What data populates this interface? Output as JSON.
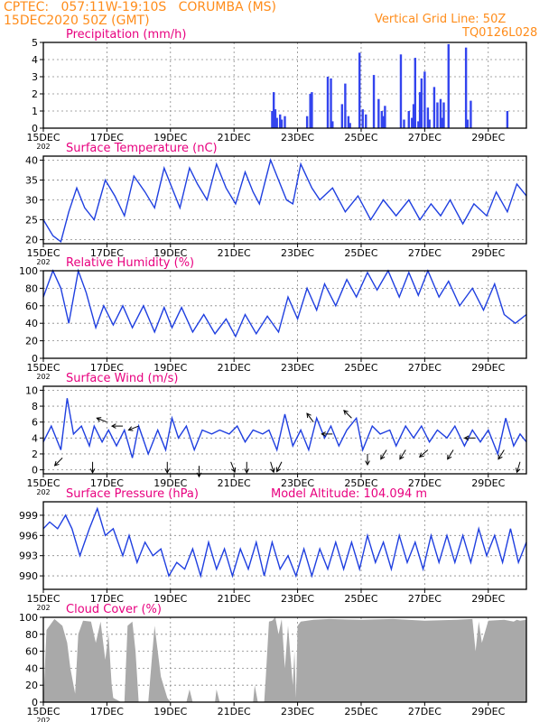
{
  "header": {
    "line1": "CPTEC:   057:11W-19:10S   CORUMBA (MS)",
    "line2": "15DEC2020 50Z (GMT)",
    "grid_note": "Vertical Grid Line: 50Z",
    "code": "TQ0126L028"
  },
  "colors": {
    "title": "#e8007f",
    "header": "#ff8c1a",
    "series": "#1f3fe0",
    "bars": "#3344ee",
    "cloud": "#a9a9a9",
    "arrow": "#000000"
  },
  "x_axis": {
    "tick_labels": [
      "15DEC",
      "17DEC",
      "19DEC",
      "21DEC",
      "23DEC",
      "25DEC",
      "27DEC",
      "29DEC"
    ],
    "year_stub": "202",
    "start_day": 15,
    "end_day": 30.2
  },
  "chart_data": [
    {
      "type": "bar",
      "title": "Precipitation (mm/h)",
      "ylim": [
        0,
        5
      ],
      "yticks": [
        "0",
        "1",
        "2",
        "3",
        "4",
        "5"
      ],
      "x_days": [
        22.2,
        22.25,
        22.3,
        22.35,
        22.45,
        22.5,
        22.6,
        23.3,
        23.4,
        23.45,
        23.95,
        24.05,
        24.1,
        24.4,
        24.5,
        24.6,
        24.65,
        24.95,
        25.05,
        25.15,
        25.4,
        25.55,
        25.65,
        25.7,
        25.75,
        26.25,
        26.35,
        26.5,
        26.6,
        26.65,
        26.7,
        26.8,
        26.85,
        26.9,
        27.0,
        27.1,
        27.15,
        27.3,
        27.4,
        27.5,
        27.55,
        27.6,
        27.75,
        28.3,
        28.35,
        28.45,
        29.6
      ],
      "values": [
        1.0,
        2.1,
        1.1,
        0.6,
        0.8,
        0.5,
        0.7,
        0.7,
        2.0,
        2.1,
        3.0,
        2.9,
        0.4,
        1.4,
        2.6,
        0.7,
        0.3,
        4.4,
        1.1,
        0.8,
        3.1,
        1.7,
        1.0,
        0.7,
        1.3,
        4.3,
        0.5,
        1.0,
        0.6,
        1.4,
        4.1,
        0.4,
        2.1,
        2.9,
        3.3,
        1.2,
        0.5,
        2.4,
        1.5,
        1.7,
        0.6,
        1.5,
        4.9,
        4.7,
        0.5,
        1.6,
        1.0
      ]
    },
    {
      "type": "line",
      "title": "Surface Temperature (nC)",
      "ylim": [
        19,
        41
      ],
      "yticks": [
        "20",
        "25",
        "30",
        "35",
        "40"
      ],
      "x": [
        15.0,
        15.3,
        15.55,
        15.8,
        16.05,
        16.3,
        16.6,
        16.95,
        17.25,
        17.55,
        17.85,
        18.2,
        18.5,
        18.8,
        19.05,
        19.3,
        19.6,
        19.85,
        20.15,
        20.45,
        20.75,
        21.05,
        21.35,
        21.6,
        21.8,
        22.15,
        22.35,
        22.65,
        22.85,
        23.1,
        23.45,
        23.7,
        24.1,
        24.5,
        24.9,
        25.3,
        25.7,
        26.1,
        26.5,
        26.85,
        27.2,
        27.5,
        27.8,
        28.2,
        28.55,
        28.95,
        29.25,
        29.6,
        29.9,
        30.2
      ],
      "y": [
        25,
        21,
        19.5,
        27,
        33,
        28,
        25,
        35,
        31,
        26,
        36,
        32,
        28,
        38,
        33,
        28,
        38,
        34,
        30,
        39,
        33,
        29,
        37,
        32,
        29,
        40,
        36,
        30,
        29,
        39,
        33,
        30,
        33,
        27,
        31,
        25,
        30,
        26,
        30,
        25,
        29,
        26,
        30,
        24,
        29,
        26,
        32,
        27,
        34,
        31
      ]
    },
    {
      "type": "line",
      "title": "Relative Humidity (%)",
      "ylim": [
        0,
        100
      ],
      "yticks": [
        "0",
        "20",
        "40",
        "60",
        "80",
        "100"
      ],
      "x": [
        15.0,
        15.3,
        15.55,
        15.8,
        16.1,
        16.35,
        16.65,
        16.9,
        17.2,
        17.5,
        17.8,
        18.15,
        18.5,
        18.8,
        19.05,
        19.35,
        19.7,
        20.05,
        20.4,
        20.75,
        21.05,
        21.35,
        21.7,
        22.05,
        22.4,
        22.7,
        23.0,
        23.3,
        23.6,
        23.85,
        24.2,
        24.55,
        24.85,
        25.2,
        25.5,
        25.85,
        26.2,
        26.5,
        26.8,
        27.1,
        27.45,
        27.75,
        28.1,
        28.5,
        28.85,
        29.2,
        29.5,
        29.85,
        30.2
      ],
      "y": [
        70,
        100,
        80,
        40,
        100,
        75,
        35,
        60,
        38,
        60,
        35,
        60,
        30,
        58,
        35,
        58,
        30,
        50,
        28,
        45,
        25,
        50,
        28,
        48,
        30,
        70,
        45,
        80,
        55,
        85,
        60,
        90,
        70,
        98,
        78,
        100,
        70,
        98,
        72,
        100,
        70,
        88,
        60,
        80,
        55,
        85,
        50,
        40,
        50
      ]
    },
    {
      "type": "line",
      "title": "Surface Wind (m/s)",
      "ylim": [
        -0.5,
        10.5
      ],
      "yticks": [
        "0",
        "2",
        "4",
        "6",
        "8",
        "10"
      ],
      "x": [
        15.0,
        15.25,
        15.55,
        15.75,
        15.95,
        16.2,
        16.45,
        16.6,
        16.85,
        17.05,
        17.3,
        17.55,
        17.8,
        18.0,
        18.3,
        18.6,
        18.85,
        19.05,
        19.25,
        19.5,
        19.75,
        20.0,
        20.3,
        20.55,
        20.85,
        21.1,
        21.35,
        21.6,
        21.9,
        22.1,
        22.35,
        22.6,
        22.85,
        23.1,
        23.35,
        23.6,
        23.85,
        24.05,
        24.3,
        24.55,
        24.85,
        25.05,
        25.35,
        25.6,
        25.9,
        26.1,
        26.4,
        26.65,
        26.9,
        27.15,
        27.4,
        27.7,
        27.95,
        28.25,
        28.5,
        28.75,
        29.0,
        29.3,
        29.55,
        29.8,
        30.0,
        30.2
      ],
      "y": [
        3.5,
        5.5,
        2.5,
        9.0,
        4.5,
        5.5,
        3.0,
        5.5,
        3.5,
        5.0,
        3.0,
        5.0,
        1.5,
        5.5,
        2.0,
        5.0,
        2.5,
        6.5,
        4.0,
        5.5,
        2.5,
        5.0,
        4.5,
        5.0,
        4.5,
        5.5,
        3.5,
        5.0,
        4.5,
        5.0,
        2.5,
        7.0,
        3.0,
        5.0,
        2.5,
        6.5,
        4.0,
        5.5,
        3.0,
        5.0,
        6.5,
        2.5,
        5.5,
        4.5,
        5.0,
        3.0,
        5.5,
        4.0,
        5.5,
        3.5,
        5.0,
        4.0,
        5.5,
        3.0,
        5.0,
        3.5,
        5.0,
        2.0,
        6.5,
        3.0,
        4.5,
        3.5
      ]
    },
    {
      "type": "line",
      "title": "Surface Pressure (hPa)",
      "annotation": "Model Altitude: 104.094  m",
      "ylim": [
        988,
        1001
      ],
      "yticks": [
        "990",
        "993",
        "996",
        "999"
      ],
      "x": [
        15.0,
        15.2,
        15.45,
        15.7,
        15.9,
        16.15,
        16.45,
        16.7,
        16.95,
        17.2,
        17.5,
        17.7,
        17.95,
        18.2,
        18.45,
        18.7,
        18.95,
        19.2,
        19.45,
        19.7,
        19.95,
        20.2,
        20.45,
        20.7,
        20.95,
        21.2,
        21.45,
        21.7,
        21.95,
        22.2,
        22.45,
        22.7,
        22.95,
        23.2,
        23.45,
        23.7,
        23.95,
        24.2,
        24.45,
        24.7,
        24.95,
        25.2,
        25.45,
        25.7,
        25.95,
        26.2,
        26.45,
        26.7,
        26.95,
        27.2,
        27.45,
        27.7,
        27.95,
        28.2,
        28.45,
        28.7,
        28.95,
        29.2,
        29.45,
        29.7,
        29.95,
        30.2
      ],
      "y": [
        997,
        998,
        997,
        999,
        997,
        993,
        997,
        1000,
        996,
        997,
        993,
        996,
        992,
        995,
        993,
        994,
        990,
        992,
        991,
        994,
        990,
        995,
        991,
        994,
        990,
        994,
        991,
        995,
        990,
        995,
        991,
        993,
        990,
        994,
        990,
        994,
        991,
        995,
        991,
        995,
        991,
        996,
        992,
        995,
        991,
        996,
        992,
        995,
        991,
        996,
        992,
        996,
        992,
        996,
        992,
        997,
        993,
        996,
        992,
        997,
        992,
        995
      ]
    },
    {
      "type": "area",
      "title": "Cloud Cover (%)",
      "ylim": [
        0,
        100
      ],
      "yticks": [
        "0",
        "20",
        "40",
        "60",
        "80",
        "100"
      ],
      "x": [
        15.0,
        15.1,
        15.35,
        15.6,
        15.75,
        15.85,
        16.0,
        16.1,
        16.25,
        16.5,
        16.65,
        16.8,
        16.95,
        17.05,
        17.15,
        17.2,
        17.45,
        17.55,
        17.65,
        17.8,
        17.9,
        18.0,
        18.1,
        18.3,
        18.5,
        18.7,
        18.9,
        19.0,
        19.2,
        19.5,
        19.6,
        19.7,
        20.4,
        20.45,
        20.55,
        20.8,
        21.6,
        21.65,
        21.75,
        21.95,
        22.0,
        22.1,
        22.2,
        22.3,
        22.4,
        22.5,
        22.6,
        22.7,
        22.85,
        22.9,
        22.95,
        23.0,
        23.1,
        23.3,
        23.5,
        24.0,
        25.0,
        26.0,
        27.0,
        28.0,
        28.5,
        28.6,
        28.7,
        28.8,
        29.0,
        29.5,
        29.8,
        29.9,
        30.0,
        30.2
      ],
      "y": [
        0,
        85,
        98,
        90,
        70,
        40,
        10,
        80,
        96,
        95,
        70,
        95,
        50,
        80,
        20,
        5,
        0,
        0,
        90,
        95,
        60,
        0,
        0,
        0,
        90,
        30,
        5,
        0,
        0,
        0,
        15,
        0,
        0,
        15,
        0,
        0,
        0,
        20,
        0,
        0,
        30,
        95,
        96,
        100,
        80,
        98,
        40,
        90,
        20,
        60,
        5,
        90,
        95,
        96,
        97,
        98,
        97,
        98,
        96,
        97,
        98,
        60,
        95,
        70,
        96,
        97,
        95,
        97,
        96,
        97
      ]
    }
  ]
}
